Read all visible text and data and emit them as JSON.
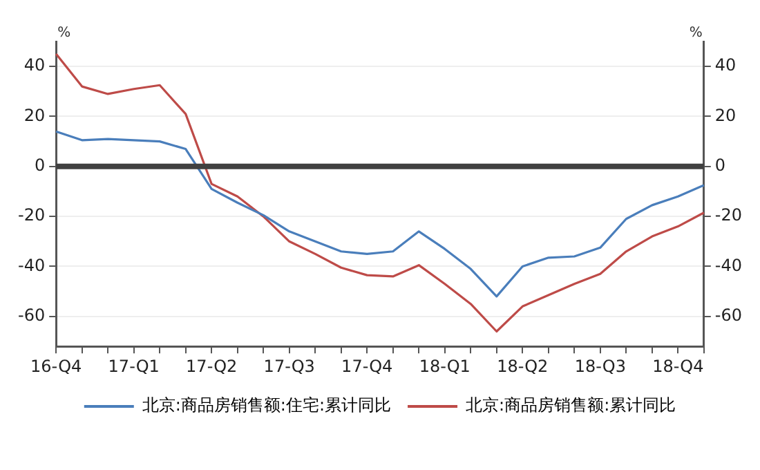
{
  "chart_data": {
    "type": "line",
    "ylabel": "%",
    "y2label": "%",
    "categories": [
      "16-Q4",
      null,
      null,
      "17-Q1",
      null,
      null,
      "17-Q2",
      null,
      null,
      "17-Q3",
      null,
      null,
      "17-Q4",
      null,
      null,
      "18-Q1",
      null,
      null,
      "18-Q2",
      null,
      null,
      "18-Q3",
      null,
      null,
      "18-Q4",
      null
    ],
    "series": [
      {
        "name": "北京:商品房销售额:住宅:累计同比",
        "color": "#4a7ebb",
        "values": [
          14,
          10.5,
          11,
          10.5,
          10,
          7,
          -9,
          -14.5,
          -19.5,
          -26,
          -30,
          -34,
          -35,
          -34,
          -26,
          -33,
          -41,
          -52,
          -40,
          -36.5,
          -36,
          -32.5,
          -21,
          -15.5,
          -12,
          -7.5
        ]
      },
      {
        "name": "北京:商品房销售额:累计同比",
        "color": "#be4b48",
        "values": [
          45,
          32,
          29,
          31,
          32.5,
          21,
          -7,
          -12,
          -20,
          -30,
          -35,
          -40.5,
          -43.5,
          -44,
          -39.5,
          -47,
          -55,
          -66,
          -56,
          -51.5,
          -47,
          -43,
          -34,
          -28,
          -24,
          -18.5
        ]
      }
    ],
    "ylim": [
      -72,
      50
    ],
    "yticks": [
      -60,
      -40,
      -20,
      0,
      20,
      40
    ],
    "y2lim": [
      -72,
      50
    ],
    "y2ticks": [
      -60,
      -40,
      -20,
      0,
      20,
      40
    ],
    "ref_lines": [
      {
        "axis": "y",
        "value": 0,
        "color": "#404040"
      }
    ],
    "grid": "y",
    "legend": "bottom",
    "marker": "none",
    "line_style": "solid"
  }
}
